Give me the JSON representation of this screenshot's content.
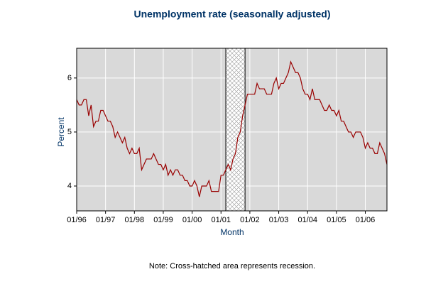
{
  "chart_data": {
    "type": "line",
    "title": "Unemployment rate (seasonally adjusted)",
    "x_label": "Month",
    "y_label": "Percent",
    "note": "Note: Cross-hatched area represents recession.",
    "categories": [
      "01/96",
      null,
      null,
      null,
      null,
      null,
      null,
      null,
      null,
      null,
      null,
      null,
      "01/97",
      null,
      null,
      null,
      null,
      null,
      null,
      null,
      null,
      null,
      null,
      null,
      "01/98",
      null,
      null,
      null,
      null,
      null,
      null,
      null,
      null,
      null,
      null,
      null,
      "01/99",
      null,
      null,
      null,
      null,
      null,
      null,
      null,
      null,
      null,
      null,
      null,
      "01/00",
      null,
      null,
      null,
      null,
      null,
      null,
      null,
      null,
      null,
      null,
      null,
      "01/01",
      null,
      null,
      null,
      null,
      null,
      null,
      null,
      null,
      null,
      null,
      null,
      "01/02",
      null,
      null,
      null,
      null,
      null,
      null,
      null,
      null,
      null,
      null,
      null,
      "01/03",
      null,
      null,
      null,
      null,
      null,
      null,
      null,
      null,
      null,
      null,
      null,
      "01/04",
      null,
      null,
      null,
      null,
      null,
      null,
      null,
      null,
      null,
      null,
      null,
      "01/05",
      null,
      null,
      null,
      null,
      null,
      null,
      null,
      null,
      null,
      null,
      null,
      "01/06",
      null,
      null,
      null,
      null,
      null,
      null,
      null,
      null,
      null
    ],
    "series": [
      {
        "name": "Unemployment rate",
        "color": "#990000",
        "values": [
          5.6,
          5.5,
          5.5,
          5.6,
          5.6,
          5.3,
          5.5,
          5.1,
          5.2,
          5.2,
          5.4,
          5.4,
          5.3,
          5.2,
          5.2,
          5.1,
          4.9,
          5.0,
          4.9,
          4.8,
          4.9,
          4.7,
          4.6,
          4.7,
          4.6,
          4.6,
          4.7,
          4.3,
          4.4,
          4.5,
          4.5,
          4.5,
          4.6,
          4.5,
          4.4,
          4.4,
          4.3,
          4.4,
          4.2,
          4.3,
          4.2,
          4.3,
          4.3,
          4.2,
          4.2,
          4.1,
          4.1,
          4.0,
          4.0,
          4.1,
          4.0,
          3.8,
          4.0,
          4.0,
          4.0,
          4.1,
          3.9,
          3.9,
          3.9,
          3.9,
          4.2,
          4.2,
          4.3,
          4.4,
          4.3,
          4.5,
          4.6,
          4.9,
          5.0,
          5.3,
          5.5,
          5.7,
          5.7,
          5.7,
          5.7,
          5.9,
          5.8,
          5.8,
          5.8,
          5.7,
          5.7,
          5.7,
          5.9,
          6.0,
          5.8,
          5.9,
          5.9,
          6.0,
          6.1,
          6.3,
          6.2,
          6.1,
          6.1,
          6.0,
          5.8,
          5.7,
          5.7,
          5.6,
          5.8,
          5.6,
          5.6,
          5.6,
          5.5,
          5.4,
          5.4,
          5.5,
          5.4,
          5.4,
          5.3,
          5.4,
          5.2,
          5.2,
          5.1,
          5.0,
          5.0,
          4.9,
          5.0,
          5.0,
          5.0,
          4.9,
          4.7,
          4.8,
          4.7,
          4.7,
          4.6,
          4.6,
          4.8,
          4.7,
          4.6,
          4.4
        ]
      }
    ],
    "shaded_range": [
      62,
      70
    ],
    "ylim": [
      3.54,
      6.55
    ],
    "yticks": [
      4,
      5,
      6
    ],
    "grid": true,
    "background": "#d9d9d9"
  }
}
